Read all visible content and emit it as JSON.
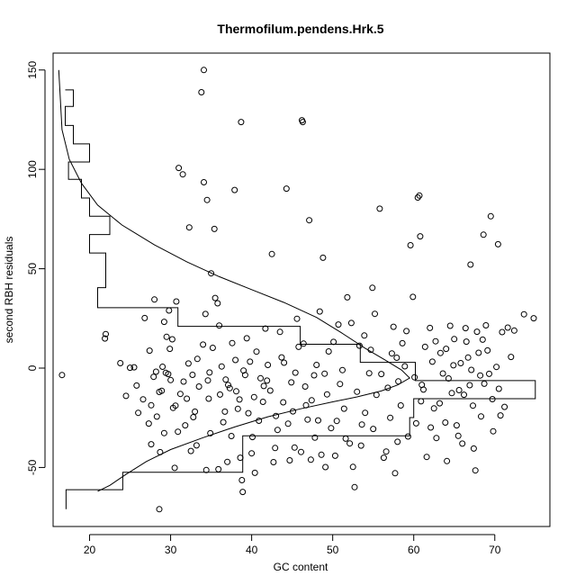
{
  "chart_data": {
    "type": "scatter",
    "title": "Thermofilum.pendens.Hrk.5",
    "xlabel": "GC content",
    "ylabel": "second RBH residuals",
    "xlim": [
      15.5,
      76.8
    ],
    "ylim": [
      -79.7,
      158.5
    ],
    "xticks": [
      20,
      30,
      40,
      50,
      60,
      70
    ],
    "yticks": [
      -50,
      0,
      50,
      100,
      150
    ],
    "grid": false,
    "legend": "none",
    "points": [
      [
        16.6,
        -3.5
      ],
      [
        21.9,
        14.9
      ],
      [
        22.0,
        17.1
      ],
      [
        23.8,
        2.5
      ],
      [
        24.5,
        -14.0
      ],
      [
        25.0,
        0.2
      ],
      [
        25.5,
        0.4
      ],
      [
        25.8,
        -8.8
      ],
      [
        26.6,
        -15.7
      ],
      [
        26.8,
        25.2
      ],
      [
        27.3,
        -27.9
      ],
      [
        27.4,
        8.8
      ],
      [
        27.6,
        -38.3
      ],
      [
        27.6,
        -18.7
      ],
      [
        27.9,
        -4.4
      ],
      [
        28.0,
        34.5
      ],
      [
        28.2,
        -1.8
      ],
      [
        28.6,
        -71.0
      ],
      [
        28.6,
        -12.0
      ],
      [
        28.7,
        -42.3
      ],
      [
        28.9,
        -11.4
      ],
      [
        29.0,
        0.7
      ],
      [
        29.2,
        23.3
      ],
      [
        29.2,
        -32.7
      ],
      [
        29.4,
        -2.4
      ],
      [
        29.5,
        15.7
      ],
      [
        29.7,
        -3.0
      ],
      [
        29.8,
        29.0
      ],
      [
        29.9,
        9.7
      ],
      [
        30.0,
        -6.0
      ],
      [
        30.2,
        14.5
      ],
      [
        30.5,
        -50.2
      ],
      [
        30.6,
        -18.9
      ],
      [
        30.7,
        33.5
      ],
      [
        30.9,
        -32.0
      ],
      [
        31.0,
        100.7
      ],
      [
        31.2,
        -13.0
      ],
      [
        31.5,
        97.5
      ],
      [
        31.8,
        -28.8
      ],
      [
        32.0,
        -15.4
      ],
      [
        32.3,
        70.8
      ],
      [
        32.5,
        -41.7
      ],
      [
        32.7,
        -3.4
      ],
      [
        33.0,
        -21.9
      ],
      [
        33.2,
        -38.9
      ],
      [
        33.5,
        -9.3
      ],
      [
        33.8,
        138.8
      ],
      [
        34.0,
        11.8
      ],
      [
        34.1,
        150.0
      ],
      [
        34.1,
        93.5
      ],
      [
        34.3,
        27.2
      ],
      [
        34.4,
        -51.3
      ],
      [
        34.5,
        84.6
      ],
      [
        34.6,
        -6.2
      ],
      [
        34.7,
        -15.4
      ],
      [
        35.0,
        47.7
      ],
      [
        35.4,
        70.0
      ],
      [
        35.5,
        35.3
      ],
      [
        35.8,
        32.6
      ],
      [
        35.9,
        -50.9
      ],
      [
        36.1,
        -13.3
      ],
      [
        36.5,
        -27.2
      ],
      [
        36.8,
        -5.8
      ],
      [
        37.0,
        -47.2
      ],
      [
        37.3,
        -10.1
      ],
      [
        37.5,
        -34.2
      ],
      [
        37.9,
        89.6
      ],
      [
        38.0,
        4.1
      ],
      [
        38.5,
        -15.8
      ],
      [
        38.7,
        123.8
      ],
      [
        38.8,
        -56.4
      ],
      [
        38.9,
        -62.3
      ],
      [
        39.2,
        -3.5
      ],
      [
        39.6,
        -22.7
      ],
      [
        39.8,
        3.2
      ],
      [
        40.1,
        -34.7
      ],
      [
        40.4,
        -52.7
      ],
      [
        40.9,
        -26.5
      ],
      [
        41.4,
        -17.0
      ],
      [
        41.5,
        -9.0
      ],
      [
        41.7,
        19.9
      ],
      [
        42.0,
        1.6
      ],
      [
        42.5,
        57.4
      ],
      [
        42.9,
        -40.2
      ],
      [
        43.2,
        -31.1
      ],
      [
        43.7,
        5.4
      ],
      [
        43.9,
        -17.2
      ],
      [
        44.3,
        90.3
      ],
      [
        44.7,
        -46.4
      ],
      [
        45.1,
        -21.8
      ],
      [
        45.4,
        -2.3
      ],
      [
        45.8,
        10.7
      ],
      [
        46.1,
        -42.2
      ],
      [
        46.2,
        124.7
      ],
      [
        46.3,
        123.8
      ],
      [
        46.6,
        -9.3
      ],
      [
        46.9,
        -25.9
      ],
      [
        47.1,
        74.4
      ],
      [
        47.4,
        -16.2
      ],
      [
        47.8,
        -35.0
      ],
      [
        48.0,
        1.6
      ],
      [
        48.6,
        -43.6
      ],
      [
        48.8,
        55.5
      ],
      [
        49.0,
        -2.8
      ],
      [
        49.3,
        -13.2
      ],
      [
        49.8,
        -30.2
      ],
      [
        50.3,
        -44.1
      ],
      [
        50.7,
        21.9
      ],
      [
        51.2,
        -1.0
      ],
      [
        51.4,
        -20.4
      ],
      [
        51.8,
        35.6
      ],
      [
        52.1,
        -37.9
      ],
      [
        52.5,
        -49.7
      ],
      [
        52.7,
        -59.9
      ],
      [
        53.3,
        11.3
      ],
      [
        53.6,
        -28.4
      ],
      [
        54.0,
        -22.5
      ],
      [
        54.5,
        -2.6
      ],
      [
        54.9,
        40.4
      ],
      [
        55.4,
        -13.5
      ],
      [
        55.8,
        80.2
      ],
      [
        56.3,
        -45.1
      ],
      [
        56.8,
        -9.9
      ],
      [
        57.1,
        -25.0
      ],
      [
        57.5,
        20.8
      ],
      [
        57.9,
        5.2
      ],
      [
        58.4,
        -18.8
      ],
      [
        58.9,
        0.9
      ],
      [
        59.3,
        -34.4
      ],
      [
        59.6,
        61.8
      ],
      [
        59.9,
        35.8
      ],
      [
        60.3,
        -27.8
      ],
      [
        60.5,
        85.8
      ],
      [
        60.7,
        86.8
      ],
      [
        60.8,
        66.3
      ],
      [
        61.2,
        -10.8
      ],
      [
        61.6,
        -44.7
      ],
      [
        62.0,
        20.2
      ],
      [
        62.3,
        3.2
      ],
      [
        62.8,
        -35.2
      ],
      [
        63.2,
        -17.7
      ],
      [
        63.6,
        -2.7
      ],
      [
        64.1,
        -46.8
      ],
      [
        64.5,
        21.3
      ],
      [
        64.9,
        1.4
      ],
      [
        65.3,
        -28.8
      ],
      [
        65.6,
        -11.1
      ],
      [
        66.0,
        -38.0
      ],
      [
        66.5,
        13.3
      ],
      [
        66.9,
        -8.6
      ],
      [
        67.0,
        52.1
      ],
      [
        67.3,
        -18.9
      ],
      [
        67.6,
        -51.5
      ],
      [
        68.0,
        7.7
      ],
      [
        68.3,
        -24.3
      ],
      [
        68.6,
        67.1
      ],
      [
        68.9,
        21.5
      ],
      [
        69.3,
        -2.9
      ],
      [
        69.5,
        76.4
      ],
      [
        69.8,
        -31.8
      ],
      [
        70.4,
        62.3
      ],
      [
        70.7,
        -23.8
      ],
      [
        70.9,
        18.1
      ],
      [
        71.6,
        20.4
      ],
      [
        72.0,
        5.6
      ],
      [
        72.4,
        18.9
      ],
      [
        73.6,
        27.1
      ],
      [
        74.8,
        25.1
      ],
      [
        35.2,
        10.2
      ],
      [
        36.0,
        21.4
      ],
      [
        37.6,
        12.6
      ],
      [
        38.3,
        -20.5
      ],
      [
        39.4,
        15.0
      ],
      [
        40.6,
        8.3
      ],
      [
        41.1,
        -5.1
      ],
      [
        42.3,
        -11.3
      ],
      [
        43.5,
        18.2
      ],
      [
        44.0,
        2.7
      ],
      [
        44.9,
        -7.2
      ],
      [
        45.6,
        24.8
      ],
      [
        46.4,
        12.3
      ],
      [
        47.7,
        -3.6
      ],
      [
        48.4,
        28.5
      ],
      [
        49.5,
        8.4
      ],
      [
        50.1,
        13.2
      ],
      [
        50.9,
        -8.0
      ],
      [
        52.3,
        22.7
      ],
      [
        53.0,
        -11.9
      ],
      [
        53.9,
        16.4
      ],
      [
        54.7,
        9.2
      ],
      [
        55.2,
        27.3
      ],
      [
        56.0,
        -3.0
      ],
      [
        57.3,
        7.4
      ],
      [
        58.1,
        -6.7
      ],
      [
        58.6,
        12.5
      ],
      [
        59.1,
        18.6
      ],
      [
        60.1,
        -4.6
      ],
      [
        61.4,
        10.7
      ],
      [
        62.5,
        -20.3
      ],
      [
        63.3,
        7.6
      ],
      [
        64.3,
        -5.2
      ],
      [
        65.0,
        14.6
      ],
      [
        65.8,
        2.5
      ],
      [
        66.2,
        -13.4
      ],
      [
        67.1,
        -0.9
      ],
      [
        67.8,
        18.3
      ],
      [
        68.7,
        -7.9
      ],
      [
        69.1,
        8.9
      ],
      [
        69.7,
        -15.6
      ],
      [
        70.2,
        0.6
      ],
      [
        62.7,
        13.5
      ],
      [
        64.7,
        -12.6
      ],
      [
        66.7,
        5.3
      ],
      [
        68.2,
        -3.7
      ],
      [
        61.0,
        -8.4
      ],
      [
        63.9,
        -27.4
      ],
      [
        65.5,
        -34.1
      ],
      [
        67.4,
        -40.5
      ],
      [
        31.6,
        -6.8
      ],
      [
        32.2,
        2.3
      ],
      [
        33.3,
        4.6
      ],
      [
        34.8,
        -2.2
      ],
      [
        36.3,
        0.8
      ],
      [
        37.1,
        -8.5
      ],
      [
        38.1,
        -11.7
      ],
      [
        39.0,
        -1.2
      ],
      [
        40.3,
        -14.6
      ],
      [
        41.9,
        -6.3
      ],
      [
        43.0,
        -24.1
      ],
      [
        44.5,
        -28.0
      ],
      [
        46.7,
        -18.7
      ],
      [
        48.2,
        -26.3
      ],
      [
        50.5,
        -26.6
      ],
      [
        51.6,
        -35.5
      ],
      [
        53.5,
        -39.0
      ],
      [
        55.0,
        -30.6
      ],
      [
        56.6,
        -42.0
      ],
      [
        58.0,
        -37.1
      ],
      [
        26.0,
        -22.5
      ],
      [
        28.3,
        -24.4
      ],
      [
        30.3,
        -20.0
      ],
      [
        32.8,
        -24.7
      ],
      [
        34.9,
        -32.8
      ],
      [
        36.7,
        -21.9
      ],
      [
        38.6,
        -45.1
      ],
      [
        40.0,
        -42.9
      ],
      [
        42.7,
        -47.3
      ],
      [
        45.3,
        -40.0
      ],
      [
        47.3,
        -46.1
      ],
      [
        49.1,
        -49.8
      ],
      [
        57.7,
        -52.9
      ],
      [
        60.9,
        -16.7
      ],
      [
        62.1,
        -29.9
      ],
      [
        64.0,
        9.7
      ],
      [
        66.4,
        20.1
      ],
      [
        68.5,
        14.3
      ],
      [
        70.5,
        -10.4
      ],
      [
        71.2,
        -19.5
      ]
    ],
    "histogram_steps": [
      [
        17.0,
        140.0
      ],
      [
        18.0,
        140.0
      ],
      [
        18.0,
        131.7
      ],
      [
        17.0,
        131.7
      ],
      [
        17.0,
        122.1
      ],
      [
        18.0,
        122.1
      ],
      [
        18.0,
        112.8
      ],
      [
        20.0,
        112.8
      ],
      [
        20.0,
        103.7
      ],
      [
        17.4,
        103.7
      ],
      [
        17.4,
        95.0
      ],
      [
        19.0,
        95.0
      ],
      [
        19.0,
        85.6
      ],
      [
        20.0,
        85.6
      ],
      [
        20.0,
        76.4
      ],
      [
        22.5,
        76.4
      ],
      [
        22.5,
        67.2
      ],
      [
        20.0,
        67.2
      ],
      [
        20.0,
        57.9
      ],
      [
        22.0,
        57.9
      ],
      [
        22.0,
        40.5
      ],
      [
        21.0,
        40.5
      ],
      [
        21.0,
        30.4
      ],
      [
        30.9,
        30.4
      ],
      [
        30.9,
        21.0
      ],
      [
        46.0,
        21.0
      ],
      [
        46.0,
        12.0
      ],
      [
        53.4,
        12.0
      ],
      [
        53.4,
        2.9
      ],
      [
        60.2,
        2.9
      ],
      [
        60.2,
        -6.3
      ],
      [
        75.0,
        -6.3
      ],
      [
        75.0,
        -15.4
      ],
      [
        60.0,
        -15.4
      ],
      [
        60.0,
        -24.9
      ],
      [
        59.5,
        -24.9
      ],
      [
        59.5,
        -34.1
      ],
      [
        38.9,
        -34.1
      ],
      [
        38.9,
        -52.4
      ],
      [
        24.1,
        -52.4
      ],
      [
        24.1,
        -61.2
      ],
      [
        17.1,
        -61.2
      ],
      [
        17.1,
        -71.0
      ]
    ],
    "density_curve": [
      [
        16.2,
        150.0
      ],
      [
        16.6,
        120.0
      ],
      [
        17.5,
        105.0
      ],
      [
        19.0,
        93.0
      ],
      [
        21.0,
        82.0
      ],
      [
        24.0,
        72.0
      ],
      [
        28.0,
        62.0
      ],
      [
        32.0,
        53.5
      ],
      [
        36.0,
        46.0
      ],
      [
        40.0,
        39.5
      ],
      [
        44.0,
        33.0
      ],
      [
        48.0,
        25.5
      ],
      [
        51.0,
        18.0
      ],
      [
        54.0,
        10.0
      ],
      [
        56.5,
        4.0
      ],
      [
        58.5,
        -1.0
      ],
      [
        59.5,
        -5.0
      ],
      [
        58.0,
        -8.5
      ],
      [
        56.0,
        -11.5
      ],
      [
        53.0,
        -14.5
      ],
      [
        50.0,
        -17.0
      ],
      [
        46.0,
        -20.5
      ],
      [
        42.0,
        -24.5
      ],
      [
        38.0,
        -29.5
      ],
      [
        34.0,
        -35.0
      ],
      [
        30.0,
        -41.0
      ],
      [
        27.0,
        -47.0
      ],
      [
        24.5,
        -53.5
      ],
      [
        22.5,
        -59.0
      ],
      [
        21.0,
        -62.0
      ]
    ]
  }
}
